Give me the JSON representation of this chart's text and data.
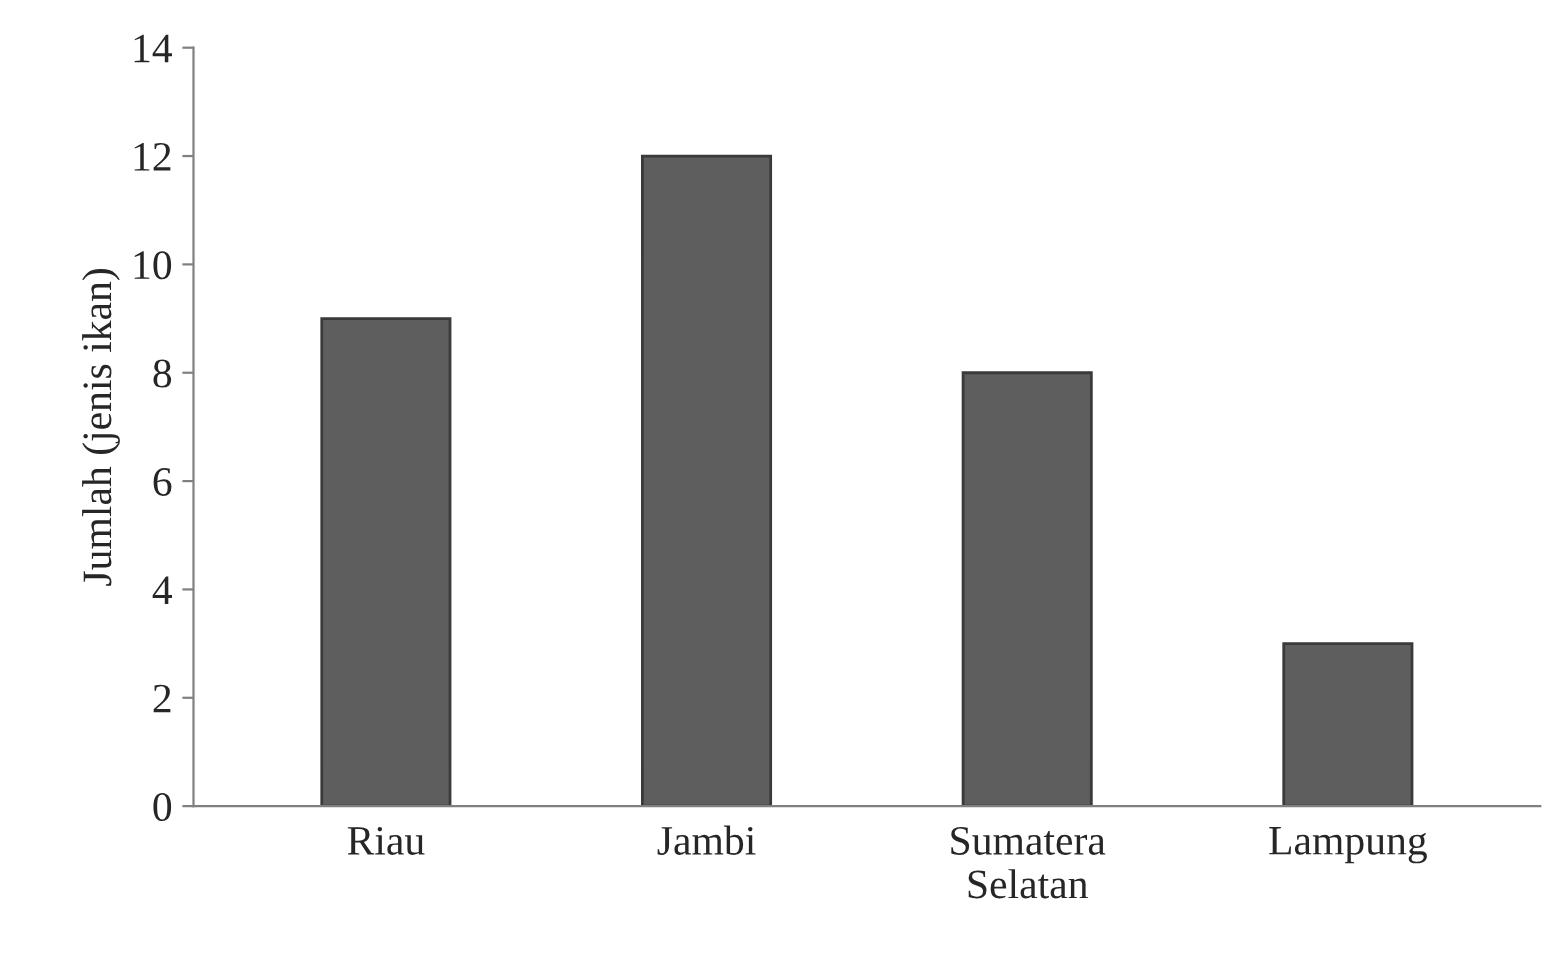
{
  "chart_data": {
    "type": "bar",
    "ylabel": "Jumlah (jenis ikan)",
    "categories": [
      "Riau",
      "Jambi",
      "Sumatera\nSelatan",
      "Lampung"
    ],
    "values": [
      9,
      12,
      8,
      3
    ],
    "color": "#5e5e5e",
    "ylim": [
      0,
      14
    ],
    "yticks": [
      0,
      2,
      4,
      6,
      8,
      10,
      12,
      14
    ],
    "grid": false,
    "legend": false
  }
}
